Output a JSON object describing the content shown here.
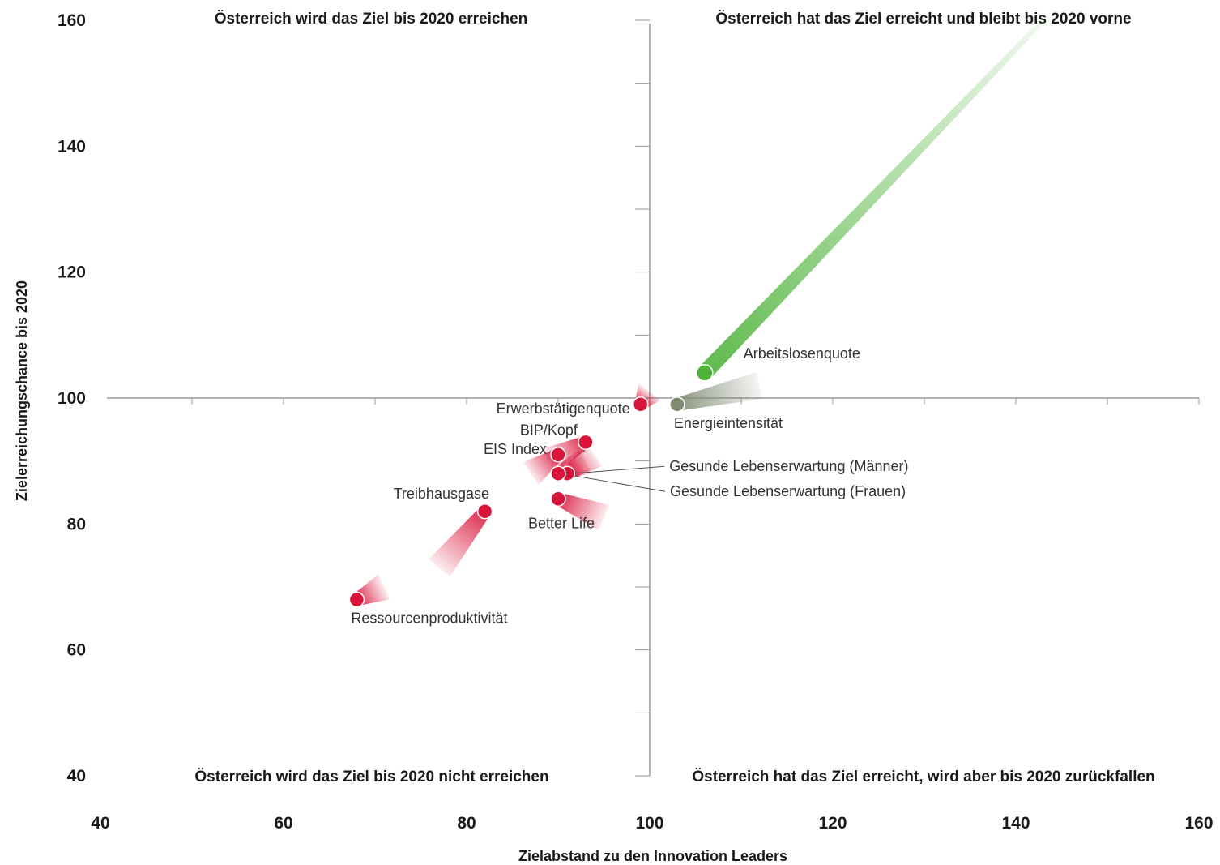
{
  "chart_data": {
    "type": "scatter",
    "xlabel": "Zielabstand zu den Innovation Leaders",
    "ylabel": "Zielerreichungschance bis 2020",
    "xlim": [
      40,
      160
    ],
    "ylim": [
      40,
      160
    ],
    "x_ticks": [
      "40",
      "60",
      "80",
      "100",
      "120",
      "140",
      "160"
    ],
    "y_ticks": [
      "40",
      "60",
      "80",
      "100",
      "120",
      "140",
      "160"
    ],
    "reference_lines": {
      "x": 100,
      "y": 100
    },
    "quadrant_labels": {
      "top_left": "Österreich wird das Ziel bis 2020 erreichen",
      "top_right": "Österreich hat das Ziel erreicht und bleibt bis 2020 vorne",
      "bottom_left": "Österreich wird das Ziel bis 2020 nicht erreichen",
      "bottom_right": "Österreich hat das Ziel erreicht, wird aber bis 2020 zurückfallen"
    },
    "colors": {
      "negative": "#d8143a",
      "positive": "#4fb33a",
      "neutral": "#7f8a72",
      "axis": "#999999"
    },
    "points": [
      {
        "label": "Arbeitslosenquote",
        "x": 106,
        "y": 104,
        "tail_x": 143,
        "tail_y": 160,
        "color": "positive"
      },
      {
        "label": "Energieintensität",
        "x": 103,
        "y": 99,
        "tail_x": 112,
        "tail_y": 102,
        "color": "neutral"
      },
      {
        "label": "Erwerbstätigenquote",
        "x": 99,
        "y": 99,
        "tail_x": 100,
        "tail_y": 101,
        "color": "negative"
      },
      {
        "label": "BIP/Kopf",
        "x": 93,
        "y": 93,
        "tail_x": 89,
        "tail_y": 90,
        "color": "negative"
      },
      {
        "label": "EIS Index",
        "x": 90,
        "y": 91,
        "tail_x": 87,
        "tail_y": 88,
        "color": "negative"
      },
      {
        "label": "Gesunde Lebenserwartung (Männer)",
        "x": 91,
        "y": 88,
        "tail_x": 94,
        "tail_y": 91,
        "color": "negative"
      },
      {
        "label": "Gesunde Lebenserwartung (Frauen)",
        "x": 90,
        "y": 88,
        "tail_x": 93,
        "tail_y": 90,
        "color": "negative"
      },
      {
        "label": "Better Life",
        "x": 90,
        "y": 84,
        "tail_x": 95,
        "tail_y": 81,
        "color": "negative"
      },
      {
        "label": "Treibhausgase",
        "x": 82,
        "y": 82,
        "tail_x": 77,
        "tail_y": 73,
        "color": "negative"
      },
      {
        "label": "Ressourcenproduktivität",
        "x": 68,
        "y": 68,
        "tail_x": 71,
        "tail_y": 70,
        "color": "negative"
      }
    ]
  }
}
